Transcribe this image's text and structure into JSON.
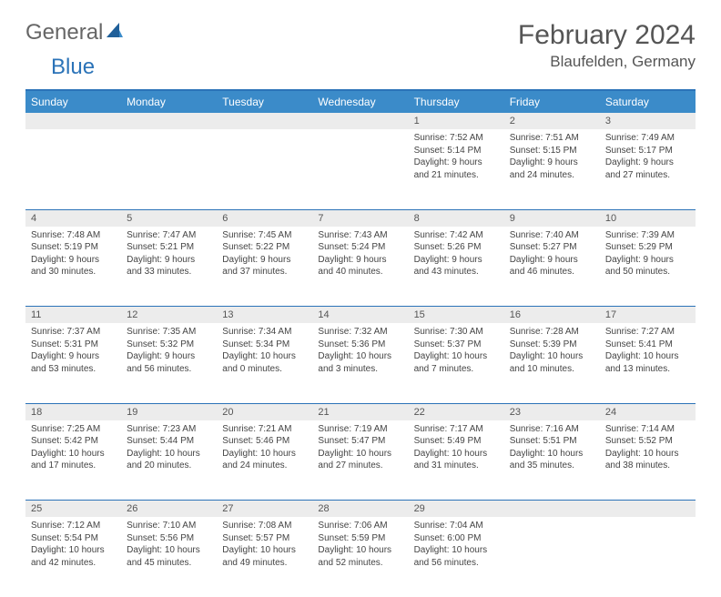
{
  "logo": {
    "part1": "General",
    "part2": "Blue"
  },
  "title": "February 2024",
  "location": "Blaufelden, Germany",
  "colors": {
    "header_bg": "#3b8bc9",
    "accent_border": "#2b73b8",
    "daynum_bg": "#ececec",
    "text": "#444444",
    "title_text": "#555555"
  },
  "weekdays": [
    "Sunday",
    "Monday",
    "Tuesday",
    "Wednesday",
    "Thursday",
    "Friday",
    "Saturday"
  ],
  "weeks": [
    [
      null,
      null,
      null,
      null,
      {
        "n": "1",
        "sr": "Sunrise: 7:52 AM",
        "ss": "Sunset: 5:14 PM",
        "d1": "Daylight: 9 hours",
        "d2": "and 21 minutes."
      },
      {
        "n": "2",
        "sr": "Sunrise: 7:51 AM",
        "ss": "Sunset: 5:15 PM",
        "d1": "Daylight: 9 hours",
        "d2": "and 24 minutes."
      },
      {
        "n": "3",
        "sr": "Sunrise: 7:49 AM",
        "ss": "Sunset: 5:17 PM",
        "d1": "Daylight: 9 hours",
        "d2": "and 27 minutes."
      }
    ],
    [
      {
        "n": "4",
        "sr": "Sunrise: 7:48 AM",
        "ss": "Sunset: 5:19 PM",
        "d1": "Daylight: 9 hours",
        "d2": "and 30 minutes."
      },
      {
        "n": "5",
        "sr": "Sunrise: 7:47 AM",
        "ss": "Sunset: 5:21 PM",
        "d1": "Daylight: 9 hours",
        "d2": "and 33 minutes."
      },
      {
        "n": "6",
        "sr": "Sunrise: 7:45 AM",
        "ss": "Sunset: 5:22 PM",
        "d1": "Daylight: 9 hours",
        "d2": "and 37 minutes."
      },
      {
        "n": "7",
        "sr": "Sunrise: 7:43 AM",
        "ss": "Sunset: 5:24 PM",
        "d1": "Daylight: 9 hours",
        "d2": "and 40 minutes."
      },
      {
        "n": "8",
        "sr": "Sunrise: 7:42 AM",
        "ss": "Sunset: 5:26 PM",
        "d1": "Daylight: 9 hours",
        "d2": "and 43 minutes."
      },
      {
        "n": "9",
        "sr": "Sunrise: 7:40 AM",
        "ss": "Sunset: 5:27 PM",
        "d1": "Daylight: 9 hours",
        "d2": "and 46 minutes."
      },
      {
        "n": "10",
        "sr": "Sunrise: 7:39 AM",
        "ss": "Sunset: 5:29 PM",
        "d1": "Daylight: 9 hours",
        "d2": "and 50 minutes."
      }
    ],
    [
      {
        "n": "11",
        "sr": "Sunrise: 7:37 AM",
        "ss": "Sunset: 5:31 PM",
        "d1": "Daylight: 9 hours",
        "d2": "and 53 minutes."
      },
      {
        "n": "12",
        "sr": "Sunrise: 7:35 AM",
        "ss": "Sunset: 5:32 PM",
        "d1": "Daylight: 9 hours",
        "d2": "and 56 minutes."
      },
      {
        "n": "13",
        "sr": "Sunrise: 7:34 AM",
        "ss": "Sunset: 5:34 PM",
        "d1": "Daylight: 10 hours",
        "d2": "and 0 minutes."
      },
      {
        "n": "14",
        "sr": "Sunrise: 7:32 AM",
        "ss": "Sunset: 5:36 PM",
        "d1": "Daylight: 10 hours",
        "d2": "and 3 minutes."
      },
      {
        "n": "15",
        "sr": "Sunrise: 7:30 AM",
        "ss": "Sunset: 5:37 PM",
        "d1": "Daylight: 10 hours",
        "d2": "and 7 minutes."
      },
      {
        "n": "16",
        "sr": "Sunrise: 7:28 AM",
        "ss": "Sunset: 5:39 PM",
        "d1": "Daylight: 10 hours",
        "d2": "and 10 minutes."
      },
      {
        "n": "17",
        "sr": "Sunrise: 7:27 AM",
        "ss": "Sunset: 5:41 PM",
        "d1": "Daylight: 10 hours",
        "d2": "and 13 minutes."
      }
    ],
    [
      {
        "n": "18",
        "sr": "Sunrise: 7:25 AM",
        "ss": "Sunset: 5:42 PM",
        "d1": "Daylight: 10 hours",
        "d2": "and 17 minutes."
      },
      {
        "n": "19",
        "sr": "Sunrise: 7:23 AM",
        "ss": "Sunset: 5:44 PM",
        "d1": "Daylight: 10 hours",
        "d2": "and 20 minutes."
      },
      {
        "n": "20",
        "sr": "Sunrise: 7:21 AM",
        "ss": "Sunset: 5:46 PM",
        "d1": "Daylight: 10 hours",
        "d2": "and 24 minutes."
      },
      {
        "n": "21",
        "sr": "Sunrise: 7:19 AM",
        "ss": "Sunset: 5:47 PM",
        "d1": "Daylight: 10 hours",
        "d2": "and 27 minutes."
      },
      {
        "n": "22",
        "sr": "Sunrise: 7:17 AM",
        "ss": "Sunset: 5:49 PM",
        "d1": "Daylight: 10 hours",
        "d2": "and 31 minutes."
      },
      {
        "n": "23",
        "sr": "Sunrise: 7:16 AM",
        "ss": "Sunset: 5:51 PM",
        "d1": "Daylight: 10 hours",
        "d2": "and 35 minutes."
      },
      {
        "n": "24",
        "sr": "Sunrise: 7:14 AM",
        "ss": "Sunset: 5:52 PM",
        "d1": "Daylight: 10 hours",
        "d2": "and 38 minutes."
      }
    ],
    [
      {
        "n": "25",
        "sr": "Sunrise: 7:12 AM",
        "ss": "Sunset: 5:54 PM",
        "d1": "Daylight: 10 hours",
        "d2": "and 42 minutes."
      },
      {
        "n": "26",
        "sr": "Sunrise: 7:10 AM",
        "ss": "Sunset: 5:56 PM",
        "d1": "Daylight: 10 hours",
        "d2": "and 45 minutes."
      },
      {
        "n": "27",
        "sr": "Sunrise: 7:08 AM",
        "ss": "Sunset: 5:57 PM",
        "d1": "Daylight: 10 hours",
        "d2": "and 49 minutes."
      },
      {
        "n": "28",
        "sr": "Sunrise: 7:06 AM",
        "ss": "Sunset: 5:59 PM",
        "d1": "Daylight: 10 hours",
        "d2": "and 52 minutes."
      },
      {
        "n": "29",
        "sr": "Sunrise: 7:04 AM",
        "ss": "Sunset: 6:00 PM",
        "d1": "Daylight: 10 hours",
        "d2": "and 56 minutes."
      },
      null,
      null
    ]
  ]
}
